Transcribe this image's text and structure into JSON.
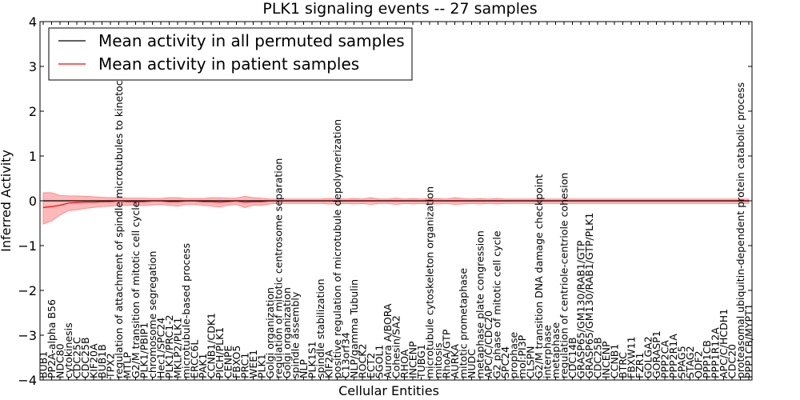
{
  "chart_data": {
    "type": "line",
    "title": "PLK1 signaling events -- 27 samples",
    "xlabel": "Cellular Entities",
    "ylabel": "Inferred Activity",
    "ylim": [
      -4,
      4
    ],
    "yticks": [
      "−4",
      "−3",
      "−2",
      "−1",
      "0",
      "1",
      "2",
      "3",
      "4"
    ],
    "yticks_values": [
      -4,
      -3,
      -2,
      -1,
      0,
      1,
      2,
      3,
      4
    ],
    "legend_position": "top-left",
    "categories": [
      "BUB1",
      "PP2A-alpha B56",
      "NDC80",
      "cytokinesis",
      "CDC25C",
      "CDC25B",
      "KIF20A",
      "BUB1B",
      "TPX2",
      "regulation of attachment of spindle microtubules to kinetochore",
      "MTLP",
      "G2/M transition of mitotic cell cycle",
      "PLK1/PBIP1",
      "chromosome segregation",
      "Hec1/SPC24",
      "PLK1/PRC1-2",
      "MKLP2/PLK1",
      "microtubule-based process",
      "ERCC6L",
      "PAK1",
      "CCNB1/CDK1",
      "PICH/PLK1",
      "CENPE",
      "FBXO5",
      "PRC1",
      "WEE1",
      "PLK1",
      "Golgi organization",
      "regulation of mitotic centrosome separation",
      "Golgi organization",
      "spindle assembly",
      "NLP",
      "PLK1S1",
      "spindle stabilization",
      "KIF2A",
      "positive regulation of microtubule depolymerization",
      "C13orf34",
      "NLP/gamma Tubulin",
      "ROCK2",
      "ECT2",
      "SGOL1",
      "Aurora A/BORA",
      "Cohesin/SA2",
      "RHOA",
      "INCENP",
      "TUBG1",
      "microtubule cytoskeleton organization",
      "mitosis",
      "RhoA/GTP",
      "AURKA",
      "mitotic prometaphase",
      "NUDC",
      "metaphase plate congression",
      "APC/C/CDC20",
      "G2 phase of mitotic cell cycle",
      "SPC24",
      "prophase",
      "mol:PI3P",
      "CLSPN",
      "G2/M transition DNA damage checkpoint",
      "interphase",
      "metaphase",
      "regulation of centriole-centriole cohesion",
      "CDC14B",
      "GRASP65/GM130/RAB1/GTP",
      "GRASP65/GM130/RAB1/GTP/PLK1",
      "CDC25B",
      "INCENP",
      "CCNB1",
      "BTRC",
      "FBXW11",
      "FZR1",
      "GOLGA2",
      "GORASP1",
      "PPP2CA",
      "PPP2R1A",
      "SPAG5",
      "STAG2",
      "ODF2",
      "PPP1CB",
      "PPP1R12A",
      "APC/C/HCDH1",
      "CDC20",
      "proteasomal ubiquitin-dependent protein catabolic process",
      "PPP1CB/MYPT1"
    ],
    "series": [
      {
        "name": "Mean activity in all permuted samples",
        "color": "#000000",
        "values": [
          0,
          0,
          0,
          0,
          0,
          0,
          0,
          0,
          0,
          0,
          0,
          0,
          0,
          0,
          0,
          0,
          0,
          0,
          0,
          0,
          0,
          0,
          0,
          0,
          0,
          0,
          0,
          0,
          0,
          0,
          0,
          0,
          0,
          0,
          0,
          0,
          0,
          0,
          0,
          0,
          0,
          0,
          0,
          0,
          0,
          0,
          0,
          0,
          0,
          0,
          0,
          0,
          0,
          0,
          0,
          0,
          0,
          0,
          0,
          0,
          0,
          0,
          0,
          0,
          0,
          0,
          0,
          0,
          0,
          0,
          0,
          0,
          0,
          0,
          0,
          0,
          0,
          0,
          0,
          0,
          0,
          0,
          0,
          0,
          0
        ]
      },
      {
        "name": "Mean activity in patient samples",
        "color": "#ff0000",
        "band_color": "#ff7f7f",
        "values": [
          -0.15,
          -0.13,
          -0.1,
          -0.05,
          -0.04,
          -0.03,
          -0.03,
          -0.02,
          -0.02,
          -0.01,
          -0.02,
          -0.02,
          -0.02,
          -0.01,
          -0.01,
          -0.02,
          -0.02,
          -0.01,
          -0.01,
          -0.02,
          -0.02,
          -0.03,
          -0.02,
          -0.01,
          -0.03,
          -0.02,
          -0.02,
          -0.01,
          -0.01,
          -0.01,
          -0.01,
          -0.01,
          -0.01,
          -0.01,
          -0.01,
          -0.01,
          -0.01,
          -0.01,
          -0.01,
          -0.01,
          -0.01,
          -0.01,
          -0.01,
          -0.01,
          -0.01,
          -0.01,
          -0.01,
          -0.01,
          -0.01,
          -0.01,
          -0.01,
          -0.01,
          -0.01,
          -0.01,
          -0.01,
          -0.01,
          -0.01,
          -0.01,
          -0.01,
          -0.01,
          -0.01,
          -0.01,
          -0.01,
          -0.01,
          -0.01,
          -0.01,
          -0.01,
          -0.01,
          -0.01,
          -0.01,
          -0.01,
          -0.01,
          -0.01,
          -0.01,
          -0.01,
          -0.01,
          -0.01,
          -0.01,
          -0.01,
          -0.01,
          -0.01,
          -0.01,
          -0.01,
          -0.01,
          -0.01
        ],
        "band_upper": [
          0.18,
          0.18,
          0.12,
          0.11,
          0.11,
          0.1,
          0.09,
          0.08,
          0.07,
          0.07,
          0.06,
          0.06,
          0.06,
          0.05,
          0.05,
          0.07,
          0.07,
          0.05,
          0.05,
          0.05,
          0.07,
          0.07,
          0.06,
          0.06,
          0.1,
          0.07,
          0.06,
          0.04,
          0.04,
          0.04,
          0.04,
          0.04,
          0.04,
          0.04,
          0.05,
          0.05,
          0.04,
          0.05,
          0.04,
          0.07,
          0.04,
          0.04,
          0.06,
          0.04,
          0.05,
          0.04,
          0.05,
          0.05,
          0.04,
          0.07,
          0.05,
          0.04,
          0.05,
          0.04,
          0.05,
          0.04,
          0.04,
          0.04,
          0.04,
          0.04,
          0.04,
          0.04,
          0.04,
          0.04,
          0.04,
          0.04,
          0.04,
          0.04,
          0.04,
          0.04,
          0.04,
          0.04,
          0.04,
          0.04,
          0.04,
          0.04,
          0.04,
          0.04,
          0.04,
          0.04,
          0.04,
          0.04,
          0.04,
          0.04,
          0.04
        ],
        "band_lower": [
          -0.52,
          -0.45,
          -0.32,
          -0.22,
          -0.2,
          -0.17,
          -0.15,
          -0.13,
          -0.12,
          -0.1,
          -0.1,
          -0.1,
          -0.11,
          -0.09,
          -0.08,
          -0.1,
          -0.12,
          -0.08,
          -0.08,
          -0.1,
          -0.12,
          -0.14,
          -0.1,
          -0.08,
          -0.15,
          -0.1,
          -0.1,
          -0.07,
          -0.06,
          -0.06,
          -0.06,
          -0.06,
          -0.06,
          -0.06,
          -0.07,
          -0.07,
          -0.06,
          -0.07,
          -0.06,
          -0.08,
          -0.06,
          -0.06,
          -0.08,
          -0.06,
          -0.07,
          -0.06,
          -0.07,
          -0.07,
          -0.06,
          -0.08,
          -0.07,
          -0.06,
          -0.07,
          -0.06,
          -0.07,
          -0.06,
          -0.06,
          -0.06,
          -0.06,
          -0.06,
          -0.06,
          -0.06,
          -0.06,
          -0.06,
          -0.06,
          -0.06,
          -0.06,
          -0.06,
          -0.06,
          -0.06,
          -0.06,
          -0.06,
          -0.06,
          -0.06,
          -0.06,
          -0.06,
          -0.06,
          -0.06,
          -0.06,
          -0.06,
          -0.06,
          -0.06,
          -0.06,
          -0.06,
          -0.06
        ]
      }
    ],
    "permuted_band_color": "#d8d8ee"
  }
}
